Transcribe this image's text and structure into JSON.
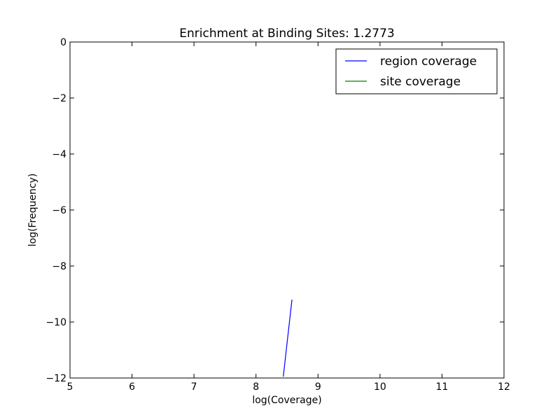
{
  "chart_data": {
    "type": "line",
    "title": "Enrichment at Binding Sites: 1.2773",
    "xlabel": "log(Coverage)",
    "ylabel": "log(Frequency)",
    "xlim": [
      5,
      12
    ],
    "ylim": [
      -12,
      0
    ],
    "xticks": [
      5,
      6,
      7,
      8,
      9,
      10,
      11,
      12
    ],
    "yticks": [
      0,
      -2,
      -4,
      -6,
      -8,
      -10,
      -12
    ],
    "xtick_labels": [
      "5",
      "6",
      "7",
      "8",
      "9",
      "10",
      "11",
      "12"
    ],
    "ytick_labels": [
      "0",
      "−2",
      "−4",
      "−6",
      "−8",
      "−10",
      "−12"
    ],
    "grid": false,
    "legend_position": "top-right",
    "series": [
      {
        "name": "region coverage",
        "color": "#0000ff",
        "x": [
          8.44,
          8.58
        ],
        "y": [
          -11.95,
          -9.2
        ]
      },
      {
        "name": "site coverage",
        "color": "#008000",
        "x": [],
        "y": []
      }
    ]
  }
}
